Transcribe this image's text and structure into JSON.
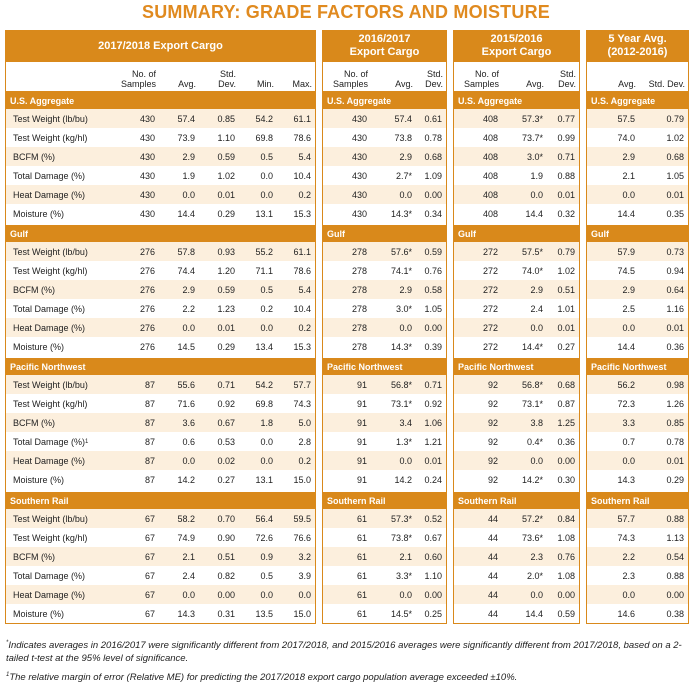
{
  "header": {
    "title": "SUMMARY: GRADE FACTORS AND MOISTURE"
  },
  "panels": [
    {
      "title": "2017/2018 Export Cargo",
      "columns": [
        "No. of Samples",
        "Avg.",
        "Std. Dev.",
        "Min.",
        "Max."
      ]
    },
    {
      "title": "2016/2017 Export Cargo",
      "columns": [
        "No. of Samples",
        "Avg.",
        "Std. Dev."
      ]
    },
    {
      "title": "2015/2016 Export Cargo",
      "columns": [
        "No. of Samples",
        "Avg.",
        "Std. Dev."
      ]
    },
    {
      "title": "5 Year Avg. (2012-2016)",
      "columns": [
        "Avg.",
        "Std. Dev."
      ]
    }
  ],
  "regions": [
    {
      "name": "U.S. Aggregate",
      "rows": [
        {
          "label": "Test Weight (lb/bu)",
          "cells": [
            [
              "430",
              "57.4",
              "0.85",
              "54.2",
              "61.1"
            ],
            [
              "430",
              "57.4",
              "0.61"
            ],
            [
              "408",
              "57.3*",
              "0.77"
            ],
            [
              "57.5",
              "0.79"
            ]
          ]
        },
        {
          "label": "Test Weight (kg/hl)",
          "cells": [
            [
              "430",
              "73.9",
              "1.10",
              "69.8",
              "78.6"
            ],
            [
              "430",
              "73.8",
              "0.78"
            ],
            [
              "408",
              "73.7*",
              "0.99"
            ],
            [
              "74.0",
              "1.02"
            ]
          ]
        },
        {
          "label": "BCFM (%)",
          "cells": [
            [
              "430",
              "2.9",
              "0.59",
              "0.5",
              "5.4"
            ],
            [
              "430",
              "2.9",
              "0.68"
            ],
            [
              "408",
              "3.0*",
              "0.71"
            ],
            [
              "2.9",
              "0.68"
            ]
          ]
        },
        {
          "label": "Total Damage (%)",
          "cells": [
            [
              "430",
              "1.9",
              "1.02",
              "0.0",
              "10.4"
            ],
            [
              "430",
              "2.7*",
              "1.09"
            ],
            [
              "408",
              "1.9",
              "0.88"
            ],
            [
              "2.1",
              "1.05"
            ]
          ]
        },
        {
          "label": "Heat Damage (%)",
          "cells": [
            [
              "430",
              "0.0",
              "0.01",
              "0.0",
              "0.2"
            ],
            [
              "430",
              "0.0",
              "0.00"
            ],
            [
              "408",
              "0.0",
              "0.01"
            ],
            [
              "0.0",
              "0.01"
            ]
          ]
        },
        {
          "label": "Moisture (%)",
          "cells": [
            [
              "430",
              "14.4",
              "0.29",
              "13.1",
              "15.3"
            ],
            [
              "430",
              "14.3*",
              "0.34"
            ],
            [
              "408",
              "14.4",
              "0.32"
            ],
            [
              "14.4",
              "0.35"
            ]
          ]
        }
      ]
    },
    {
      "name": "Gulf",
      "rows": [
        {
          "label": "Test Weight (lb/bu)",
          "cells": [
            [
              "276",
              "57.8",
              "0.93",
              "55.2",
              "61.1"
            ],
            [
              "278",
              "57.6*",
              "0.59"
            ],
            [
              "272",
              "57.5*",
              "0.79"
            ],
            [
              "57.9",
              "0.73"
            ]
          ]
        },
        {
          "label": "Test Weight (kg/hl)",
          "cells": [
            [
              "276",
              "74.4",
              "1.20",
              "71.1",
              "78.6"
            ],
            [
              "278",
              "74.1*",
              "0.76"
            ],
            [
              "272",
              "74.0*",
              "1.02"
            ],
            [
              "74.5",
              "0.94"
            ]
          ]
        },
        {
          "label": "BCFM (%)",
          "cells": [
            [
              "276",
              "2.9",
              "0.59",
              "0.5",
              "5.4"
            ],
            [
              "278",
              "2.9",
              "0.58"
            ],
            [
              "272",
              "2.9",
              "0.51"
            ],
            [
              "2.9",
              "0.64"
            ]
          ]
        },
        {
          "label": "Total Damage (%)",
          "cells": [
            [
              "276",
              "2.2",
              "1.23",
              "0.2",
              "10.4"
            ],
            [
              "278",
              "3.0*",
              "1.05"
            ],
            [
              "272",
              "2.4",
              "1.01"
            ],
            [
              "2.5",
              "1.16"
            ]
          ]
        },
        {
          "label": "Heat Damage (%)",
          "cells": [
            [
              "276",
              "0.0",
              "0.01",
              "0.0",
              "0.2"
            ],
            [
              "278",
              "0.0",
              "0.00"
            ],
            [
              "272",
              "0.0",
              "0.01"
            ],
            [
              "0.0",
              "0.01"
            ]
          ]
        },
        {
          "label": "Moisture (%)",
          "cells": [
            [
              "276",
              "14.5",
              "0.29",
              "13.4",
              "15.3"
            ],
            [
              "278",
              "14.3*",
              "0.39"
            ],
            [
              "272",
              "14.4*",
              "0.27"
            ],
            [
              "14.4",
              "0.36"
            ]
          ]
        }
      ]
    },
    {
      "name": "Pacific Northwest",
      "rows": [
        {
          "label": "Test Weight (lb/bu)",
          "cells": [
            [
              "87",
              "55.6",
              "0.71",
              "54.2",
              "57.7"
            ],
            [
              "91",
              "56.8*",
              "0.71"
            ],
            [
              "92",
              "56.8*",
              "0.68"
            ],
            [
              "56.2",
              "0.98"
            ]
          ]
        },
        {
          "label": "Test Weight (kg/hl)",
          "cells": [
            [
              "87",
              "71.6",
              "0.92",
              "69.8",
              "74.3"
            ],
            [
              "91",
              "73.1*",
              "0.92"
            ],
            [
              "92",
              "73.1*",
              "0.87"
            ],
            [
              "72.3",
              "1.26"
            ]
          ]
        },
        {
          "label": "BCFM (%)",
          "cells": [
            [
              "87",
              "3.6",
              "0.67",
              "1.8",
              "5.0"
            ],
            [
              "91",
              "3.4",
              "1.06"
            ],
            [
              "92",
              "3.8",
              "1.25"
            ],
            [
              "3.3",
              "0.85"
            ]
          ]
        },
        {
          "label": "Total Damage (%)",
          "note": "1",
          "cells": [
            [
              "87",
              "0.6",
              "0.53",
              "0.0",
              "2.8"
            ],
            [
              "91",
              "1.3*",
              "1.21"
            ],
            [
              "92",
              "0.4*",
              "0.36"
            ],
            [
              "0.7",
              "0.78"
            ]
          ]
        },
        {
          "label": "Heat Damage (%)",
          "cells": [
            [
              "87",
              "0.0",
              "0.02",
              "0.0",
              "0.2"
            ],
            [
              "91",
              "0.0",
              "0.01"
            ],
            [
              "92",
              "0.0",
              "0.00"
            ],
            [
              "0.0",
              "0.01"
            ]
          ]
        },
        {
          "label": "Moisture (%)",
          "cells": [
            [
              "87",
              "14.2",
              "0.27",
              "13.1",
              "15.0"
            ],
            [
              "91",
              "14.2",
              "0.24"
            ],
            [
              "92",
              "14.2*",
              "0.30"
            ],
            [
              "14.3",
              "0.29"
            ]
          ]
        }
      ]
    },
    {
      "name": "Southern Rail",
      "rows": [
        {
          "label": "Test Weight (lb/bu)",
          "cells": [
            [
              "67",
              "58.2",
              "0.70",
              "56.4",
              "59.5"
            ],
            [
              "61",
              "57.3*",
              "0.52"
            ],
            [
              "44",
              "57.2*",
              "0.84"
            ],
            [
              "57.7",
              "0.88"
            ]
          ]
        },
        {
          "label": "Test Weight (kg/hl)",
          "cells": [
            [
              "67",
              "74.9",
              "0.90",
              "72.6",
              "76.6"
            ],
            [
              "61",
              "73.8*",
              "0.67"
            ],
            [
              "44",
              "73.6*",
              "1.08"
            ],
            [
              "74.3",
              "1.13"
            ]
          ]
        },
        {
          "label": "BCFM (%)",
          "cells": [
            [
              "67",
              "2.1",
              "0.51",
              "0.9",
              "3.2"
            ],
            [
              "61",
              "2.1",
              "0.60"
            ],
            [
              "44",
              "2.3",
              "0.76"
            ],
            [
              "2.2",
              "0.54"
            ]
          ]
        },
        {
          "label": "Total Damage (%)",
          "cells": [
            [
              "67",
              "2.4",
              "0.82",
              "0.5",
              "3.9"
            ],
            [
              "61",
              "3.3*",
              "1.10"
            ],
            [
              "44",
              "2.0*",
              "1.08"
            ],
            [
              "2.3",
              "0.88"
            ]
          ]
        },
        {
          "label": "Heat Damage (%)",
          "cells": [
            [
              "67",
              "0.0",
              "0.00",
              "0.0",
              "0.0"
            ],
            [
              "61",
              "0.0",
              "0.00"
            ],
            [
              "44",
              "0.0",
              "0.00"
            ],
            [
              "0.0",
              "0.00"
            ]
          ]
        },
        {
          "label": "Moisture (%)",
          "cells": [
            [
              "67",
              "14.3",
              "0.31",
              "13.5",
              "15.0"
            ],
            [
              "61",
              "14.5*",
              "0.25"
            ],
            [
              "44",
              "14.4",
              "0.59"
            ],
            [
              "14.6",
              "0.38"
            ]
          ]
        }
      ]
    }
  ],
  "footnotes": [
    {
      "marker": "*",
      "text": "Indicates averages in 2016/2017 were significantly different from 2017/2018, and 2015/2016 averages were significantly different from 2017/2018, based on a 2-tailed t-test at the 95% level of significance."
    },
    {
      "marker": "1",
      "text": "The relative margin of error (Relative ME) for predicting the 2017/2018 export cargo population average exceeded ±10%."
    }
  ]
}
